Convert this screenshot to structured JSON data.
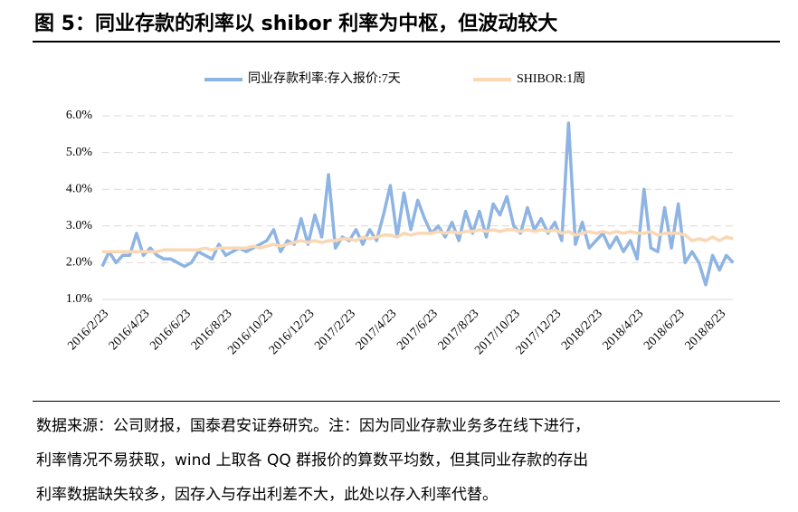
{
  "chart_data": {
    "type": "line",
    "title": "图 5：同业存款的利率以 shibor 利率为中枢，但波动较大",
    "note": [
      "数据来源：公司财报，国泰君安证券研究。注：因为同业存款业务多在线下进行，",
      "利率情况不易获取，wind 上取各 QQ 群报价的算数平均数，但其同业存款的存出",
      "利率数据缺失较多，因存入与存出利差不大，此处以存入利率代替。"
    ],
    "categories": [
      "2016/2/23",
      null,
      null,
      null,
      null,
      null,
      "2016/4/23",
      null,
      null,
      null,
      null,
      null,
      "2016/6/23",
      null,
      null,
      null,
      null,
      null,
      "2016/8/23",
      null,
      null,
      null,
      null,
      null,
      "2016/10/23",
      null,
      null,
      null,
      null,
      null,
      "2016/12/23",
      null,
      null,
      null,
      null,
      null,
      "2017/2/23",
      null,
      null,
      null,
      null,
      null,
      "2017/4/23",
      null,
      null,
      null,
      null,
      null,
      "2017/6/23",
      null,
      null,
      null,
      null,
      null,
      "2017/8/23",
      null,
      null,
      null,
      null,
      null,
      "2017/10/23",
      null,
      null,
      null,
      null,
      null,
      "2017/12/23",
      null,
      null,
      null,
      null,
      null,
      "2018/2/23",
      null,
      null,
      null,
      null,
      null,
      "2018/4/23",
      null,
      null,
      null,
      null,
      null,
      "2018/6/23",
      null,
      null,
      null,
      null,
      null,
      "2018/8/23",
      null,
      null
    ],
    "series": [
      {
        "name": "同业存款利率:存入报价:7天",
        "color": "#8eb4e3",
        "values": [
          1.9,
          2.3,
          2.0,
          2.2,
          2.2,
          2.8,
          2.2,
          2.4,
          2.2,
          2.1,
          2.1,
          2.0,
          1.9,
          2.0,
          2.3,
          2.2,
          2.1,
          2.5,
          2.2,
          2.3,
          2.4,
          2.3,
          2.4,
          2.5,
          2.6,
          2.9,
          2.3,
          2.6,
          2.5,
          3.2,
          2.5,
          3.3,
          2.7,
          4.4,
          2.4,
          2.7,
          2.6,
          2.9,
          2.5,
          2.9,
          2.6,
          3.3,
          4.1,
          2.7,
          3.9,
          2.9,
          3.7,
          3.2,
          2.8,
          3.0,
          2.7,
          3.1,
          2.6,
          3.4,
          2.8,
          3.4,
          2.7,
          3.6,
          3.3,
          3.8,
          3.0,
          2.8,
          3.5,
          2.9,
          3.2,
          2.8,
          3.1,
          2.6,
          5.8,
          2.5,
          3.1,
          2.4,
          2.6,
          2.8,
          2.4,
          2.7,
          2.3,
          2.6,
          2.1,
          4.0,
          2.4,
          2.3,
          3.5,
          2.4,
          3.6,
          2.0,
          2.3,
          2.0,
          1.4,
          2.2,
          1.8,
          2.2,
          2.0
        ]
      },
      {
        "name": "SHIBOR:1周",
        "color": "#fad7b5",
        "values": [
          2.3,
          2.3,
          2.3,
          2.3,
          2.3,
          2.3,
          2.3,
          2.3,
          2.3,
          2.35,
          2.35,
          2.35,
          2.35,
          2.35,
          2.35,
          2.4,
          2.35,
          2.4,
          2.4,
          2.4,
          2.4,
          2.4,
          2.45,
          2.4,
          2.45,
          2.5,
          2.45,
          2.5,
          2.55,
          2.6,
          2.55,
          2.6,
          2.55,
          2.6,
          2.6,
          2.65,
          2.65,
          2.6,
          2.7,
          2.65,
          2.7,
          2.75,
          2.75,
          2.7,
          2.8,
          2.75,
          2.8,
          2.8,
          2.8,
          2.85,
          2.8,
          2.85,
          2.8,
          2.85,
          2.85,
          2.9,
          2.85,
          2.9,
          2.85,
          2.9,
          2.9,
          2.85,
          2.9,
          2.85,
          2.9,
          2.85,
          2.9,
          2.8,
          2.85,
          2.75,
          2.8,
          2.85,
          2.8,
          2.85,
          2.8,
          2.85,
          2.8,
          2.85,
          2.8,
          2.8,
          2.85,
          2.75,
          2.8,
          2.8,
          2.8,
          2.75,
          2.6,
          2.65,
          2.6,
          2.7,
          2.6,
          2.7,
          2.65
        ]
      }
    ],
    "ylim": [
      1,
      6
    ],
    "yticks": [
      {
        "value": 1,
        "label": "1.0%"
      },
      {
        "value": 2,
        "label": "2.0%"
      },
      {
        "value": 3,
        "label": "3.0%"
      },
      {
        "value": 4,
        "label": "4.0%"
      },
      {
        "value": 5,
        "label": "5.0%"
      },
      {
        "value": 6,
        "label": "6.0%"
      }
    ],
    "grid": true,
    "legend": "top"
  }
}
